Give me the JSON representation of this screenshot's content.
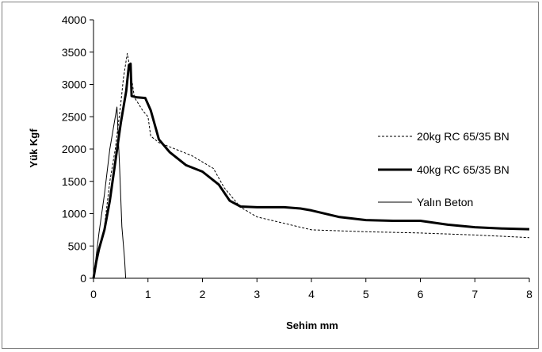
{
  "chart_data": {
    "type": "line",
    "xlabel": "Sehim  mm",
    "ylabel": "Yük  Kgf",
    "xlim": [
      0,
      8
    ],
    "ylim": [
      0,
      4000
    ],
    "x_ticks": [
      "0",
      "1",
      "2",
      "3",
      "4",
      "5",
      "6",
      "7",
      "8"
    ],
    "y_ticks": [
      "0",
      "500",
      "1000",
      "1500",
      "2000",
      "2500",
      "3000",
      "3500",
      "4000"
    ],
    "grid": false,
    "legend_position": "right",
    "series": [
      {
        "name": "20kg RC 65/35 BN",
        "style": "dashed",
        "color": "#000000",
        "points": [
          [
            0,
            0
          ],
          [
            0.05,
            300
          ],
          [
            0.1,
            400
          ],
          [
            0.2,
            800
          ],
          [
            0.3,
            1500
          ],
          [
            0.4,
            2000
          ],
          [
            0.5,
            2700
          ],
          [
            0.55,
            3100
          ],
          [
            0.62,
            3480
          ],
          [
            0.68,
            3200
          ],
          [
            0.75,
            2800
          ],
          [
            0.9,
            2600
          ],
          [
            1.0,
            2500
          ],
          [
            1.05,
            2200
          ],
          [
            1.2,
            2100
          ],
          [
            1.5,
            2000
          ],
          [
            1.8,
            1900
          ],
          [
            2.0,
            1800
          ],
          [
            2.2,
            1700
          ],
          [
            2.4,
            1400
          ],
          [
            2.7,
            1100
          ],
          [
            3.0,
            950
          ],
          [
            3.5,
            850
          ],
          [
            4.0,
            750
          ],
          [
            5.0,
            720
          ],
          [
            6.0,
            700
          ],
          [
            7.0,
            670
          ],
          [
            8.0,
            630
          ]
        ]
      },
      {
        "name": "40kg RC 65/35 BN",
        "style": "thick",
        "color": "#000000",
        "points": [
          [
            0,
            0
          ],
          [
            0.05,
            250
          ],
          [
            0.1,
            450
          ],
          [
            0.2,
            750
          ],
          [
            0.3,
            1200
          ],
          [
            0.4,
            1800
          ],
          [
            0.5,
            2400
          ],
          [
            0.6,
            2900
          ],
          [
            0.65,
            3300
          ],
          [
            0.68,
            3320
          ],
          [
            0.7,
            2820
          ],
          [
            0.8,
            2800
          ],
          [
            0.95,
            2790
          ],
          [
            1.05,
            2600
          ],
          [
            1.15,
            2300
          ],
          [
            1.2,
            2150
          ],
          [
            1.4,
            1950
          ],
          [
            1.7,
            1750
          ],
          [
            2.0,
            1650
          ],
          [
            2.3,
            1450
          ],
          [
            2.5,
            1200
          ],
          [
            2.7,
            1110
          ],
          [
            3.0,
            1100
          ],
          [
            3.5,
            1100
          ],
          [
            3.8,
            1080
          ],
          [
            4.0,
            1050
          ],
          [
            4.5,
            950
          ],
          [
            5.0,
            900
          ],
          [
            5.5,
            890
          ],
          [
            6.0,
            890
          ],
          [
            6.5,
            830
          ],
          [
            7.0,
            790
          ],
          [
            7.5,
            770
          ],
          [
            8.0,
            760
          ]
        ]
      },
      {
        "name": "Yalın Beton",
        "style": "thin",
        "color": "#000000",
        "points": [
          [
            0,
            0
          ],
          [
            0.1,
            700
          ],
          [
            0.2,
            1300
          ],
          [
            0.3,
            2000
          ],
          [
            0.43,
            2650
          ],
          [
            0.48,
            1700
          ],
          [
            0.52,
            800
          ],
          [
            0.57,
            300
          ],
          [
            0.59,
            0
          ]
        ]
      }
    ]
  }
}
